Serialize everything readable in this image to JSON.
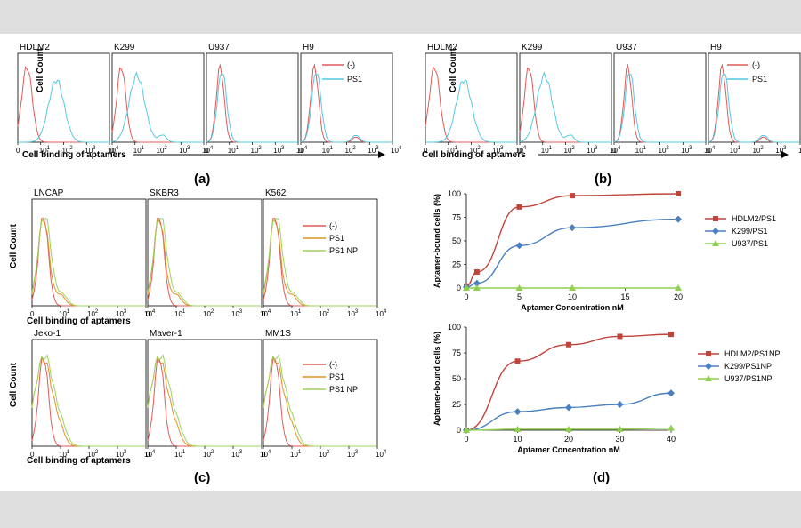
{
  "colors": {
    "control": "#e05a5a",
    "ps1": "#55c8e0",
    "ps1_orange": "#e0902a",
    "ps1np": "#9bd35a",
    "hdlm2": "#c0443c",
    "k299": "#4a80c0",
    "u937": "#8fd050",
    "axis": "#000000",
    "grid": "#bdbdbd"
  },
  "panel_labels": {
    "a": "(a)",
    "b": "(b)",
    "c": "(c)",
    "d": "(d)"
  },
  "histogram_ab": {
    "ylabel": "Cell Count",
    "xlabel": "Cell binding of aptamers",
    "ticks": [
      "0",
      "10",
      "10",
      "10",
      "10"
    ],
    "tick_exps": [
      "",
      "1",
      "2",
      "3",
      "4"
    ],
    "legend": [
      "(-)",
      "PS1"
    ],
    "cells_a": [
      "HDLM2",
      "K299",
      "U937",
      "H9"
    ],
    "cells_b": [
      "HDLM2",
      "K299",
      "U937",
      "H9"
    ]
  },
  "histogram_c": {
    "ylabel": "Cell Count",
    "xlabel": "Cell binding of aptamers",
    "legend": [
      "(-)",
      "PS1",
      "PS1 NP"
    ],
    "row1": [
      "LNCAP",
      "SKBR3",
      "K562"
    ],
    "row2": [
      "Jeko-1",
      "Maver-1",
      "MM1S"
    ]
  },
  "chart_data": [
    {
      "type": "line",
      "title": "",
      "xlabel": "Aptamer Concentration nM",
      "ylabel": "Aptamer-bound cells (%)",
      "x": [
        0,
        1,
        5,
        10,
        20
      ],
      "xticks": [
        "0",
        "5",
        "10",
        "15",
        "20"
      ],
      "yticks": [
        "0",
        "25",
        "50",
        "75",
        "100"
      ],
      "xlim": [
        0,
        20
      ],
      "ylim": [
        0,
        100
      ],
      "series": [
        {
          "name": "HDLM2/PS1",
          "values": [
            2,
            17,
            86,
            98,
            100
          ]
        },
        {
          "name": "K299/PS1",
          "values": [
            1,
            5,
            45,
            64,
            73
          ]
        },
        {
          "name": "U937/PS1",
          "values": [
            0,
            0,
            0,
            0,
            0
          ]
        }
      ]
    },
    {
      "type": "line",
      "title": "",
      "xlabel": "Aptamer Concentration nM",
      "ylabel": "Aptamer-bound cells (%)",
      "x": [
        0,
        10,
        20,
        30,
        40
      ],
      "xticks": [
        "0",
        "10",
        "20",
        "30",
        "40"
      ],
      "yticks": [
        "0",
        "25",
        "50",
        "75",
        "100"
      ],
      "xlim": [
        0,
        40
      ],
      "ylim": [
        0,
        100
      ],
      "series": [
        {
          "name": "HDLM2/PS1NP",
          "values": [
            0,
            67,
            83,
            91,
            93
          ]
        },
        {
          "name": "K299/PS1NP",
          "values": [
            0,
            18,
            22,
            25,
            36
          ]
        },
        {
          "name": "U937/PS1NP",
          "values": [
            0,
            1,
            1,
            1,
            2
          ]
        }
      ]
    }
  ]
}
